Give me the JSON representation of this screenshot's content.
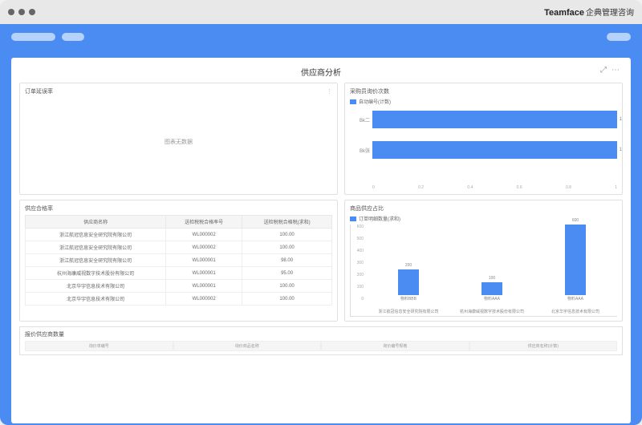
{
  "brand": {
    "name": "Teamface",
    "sub": "企典管理咨询"
  },
  "page": {
    "title": "供应商分析"
  },
  "cards": {
    "orderRate": {
      "title": "订单延误率",
      "empty": "图表无数据"
    },
    "purchaseCount": {
      "title": "采购员询价次数",
      "legend": "自动编号(计数)",
      "bars": [
        {
          "label": "Bk二",
          "value": 1
        },
        {
          "label": "Bk张",
          "value": 1
        }
      ],
      "xticks": [
        "0",
        "0.2",
        "0.4",
        "0.6",
        "0.8",
        "1"
      ]
    },
    "passRate": {
      "title": "供应合格率",
      "columns": [
        "供应商名称",
        "送检税税合格率号",
        "送检税税合格税(求和)"
      ],
      "rows": [
        [
          "浙江航冠信息安全研究院有限公司",
          "WL000002",
          "100.00"
        ],
        [
          "浙江航冠信息安全研究院有限公司",
          "WL000002",
          "100.00"
        ],
        [
          "浙江航冠信息安全研究院有限公司",
          "WL000001",
          "98.00"
        ],
        [
          "杭州海康威视数字技术股份有限公司",
          "WL000001",
          "95.00"
        ],
        [
          "北京华宇信息技术有限公司",
          "WL000001",
          "100.00"
        ],
        [
          "北京华宇信息技术有限公司",
          "WL000002",
          "100.00"
        ]
      ]
    },
    "supplyRatio": {
      "title": "商品供应占比",
      "legend": "订单明细数量(求和)",
      "ymax": 600,
      "yticks": [
        "600",
        "500",
        "400",
        "300",
        "200",
        "100",
        "0"
      ],
      "bars": [
        {
          "series": "物料BBB",
          "cat": "浙江航冠信息安全研究院有限公司",
          "value": 200
        },
        {
          "series": "物料AAA",
          "cat": "杭州海康威视数字技术股份有限公司",
          "value": 100
        },
        {
          "series": "物料AAA",
          "cat": "北京华宇信息技术有限公司",
          "value": 600
        }
      ]
    },
    "quoteCount": {
      "title": "报价供应商数量",
      "columns": [
        "询价单编号",
        "询价商品名称",
        "询价编号规格",
        "供应商名称(计数)"
      ]
    }
  },
  "colors": {
    "primary": "#4a8cf2",
    "border": "#e0e0e0",
    "text": "#555"
  }
}
